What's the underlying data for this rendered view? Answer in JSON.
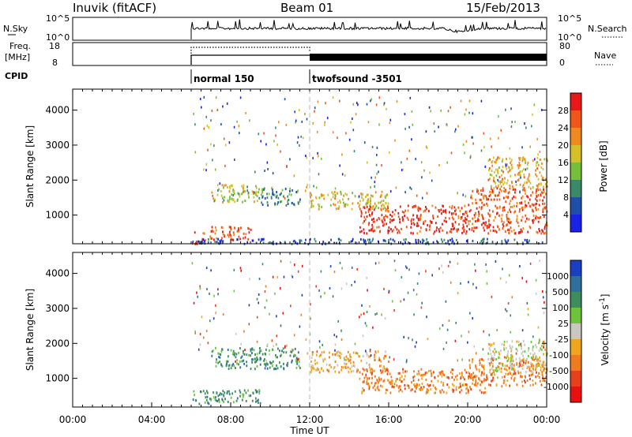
{
  "header": {
    "station": "Inuvik (fitACF)",
    "beam": "Beam 01",
    "date": "15/Feb/2013"
  },
  "noise_panel": {
    "left_label": "N.Sky",
    "right_label": "N.Search",
    "left_ticks": [
      "10^5",
      "10^0"
    ],
    "right_ticks": [
      "10^5",
      "10^0"
    ]
  },
  "freq_panel": {
    "left_label_1": "Freq.",
    "left_label_2": "[MHz]",
    "right_label": "Nave",
    "left_ticks": [
      "18",
      "8"
    ],
    "right_ticks": [
      "80",
      "0"
    ]
  },
  "cpid": {
    "label": "CPID",
    "entries": [
      {
        "name": "normal 150",
        "start_hour": 6
      },
      {
        "name": "twofsound -3501",
        "start_hour": 12
      }
    ]
  },
  "colors": {
    "power": [
      "#1b22e8",
      "#1f4fa8",
      "#3a8a6a",
      "#76bf3a",
      "#d6c02a",
      "#f08a1e",
      "#f0561a",
      "#e81818"
    ],
    "velocity": [
      "#1a3fc0",
      "#2f6f9c",
      "#3f8c5e",
      "#6cc43c",
      "#c8c8c0",
      "#f0a51e",
      "#f07a1e",
      "#e8401a",
      "#e81010"
    ]
  },
  "chart_data": [
    {
      "type": "heatmap",
      "title": "Power",
      "ylabel": "Slant Range [km]",
      "xlabel": "",
      "x_range_hours": [
        0,
        24
      ],
      "ylim": [
        180,
        4600
      ],
      "y_ticks": [
        "4000",
        "3000",
        "2000",
        "1000"
      ],
      "colorbar": {
        "label": "Power [dB]",
        "tick_labels": [
          "28",
          "24",
          "20",
          "16",
          "12",
          "8",
          "4"
        ],
        "range": [
          0,
          32
        ]
      },
      "regions": [
        {
          "x": [
            6.0,
            6.3
          ],
          "y": [
            200,
            600
          ],
          "level": 28
        },
        {
          "x": [
            6.5,
            9.0
          ],
          "y": [
            300,
            700
          ],
          "level": 26
        },
        {
          "x": [
            7.0,
            9.5
          ],
          "y": [
            1400,
            1900
          ],
          "level": 16
        },
        {
          "x": [
            9.5,
            11.5
          ],
          "y": [
            1300,
            1800
          ],
          "level": 10
        },
        {
          "x": [
            12.0,
            16.0
          ],
          "y": [
            1200,
            1700
          ],
          "level": 18
        },
        {
          "x": [
            14.5,
            20.0
          ],
          "y": [
            500,
            1300
          ],
          "level": 28
        },
        {
          "x": [
            20.0,
            24.0
          ],
          "y": [
            500,
            1800
          ],
          "level": 26
        },
        {
          "x": [
            21.0,
            24.0
          ],
          "y": [
            1800,
            2700
          ],
          "level": 20
        },
        {
          "x": [
            6.0,
            24.0
          ],
          "y": [
            200,
            350
          ],
          "level": 6
        }
      ]
    },
    {
      "type": "heatmap",
      "title": "Velocity",
      "ylabel": "Slant Range [km]",
      "xlabel": "Time UT",
      "x_range_hours": [
        0,
        24
      ],
      "x_ticks": [
        "00:00",
        "04:00",
        "08:00",
        "12:00",
        "16:00",
        "20:00",
        "00:00"
      ],
      "ylim": [
        180,
        4600
      ],
      "y_ticks": [
        "4000",
        "3000",
        "2000",
        "1000"
      ],
      "colorbar": {
        "label": "Velocity [m s^-1]",
        "tick_labels": [
          "1000",
          "500",
          "100",
          "25",
          "-25",
          "-100",
          "-500",
          "-1000"
        ]
      },
      "regions": [
        {
          "x": [
            7.0,
            11.5
          ],
          "y": [
            1300,
            1900
          ],
          "level": "100"
        },
        {
          "x": [
            6.0,
            9.5
          ],
          "y": [
            300,
            700
          ],
          "level": "100"
        },
        {
          "x": [
            12.0,
            16.0
          ],
          "y": [
            1200,
            1800
          ],
          "level": "-100"
        },
        {
          "x": [
            14.5,
            21.0
          ],
          "y": [
            600,
            1300
          ],
          "level": "-500"
        },
        {
          "x": [
            20.0,
            24.0
          ],
          "y": [
            800,
            1600
          ],
          "level": "-500"
        },
        {
          "x": [
            21.0,
            24.0
          ],
          "y": [
            1200,
            2100
          ],
          "level": "-25"
        }
      ]
    }
  ]
}
